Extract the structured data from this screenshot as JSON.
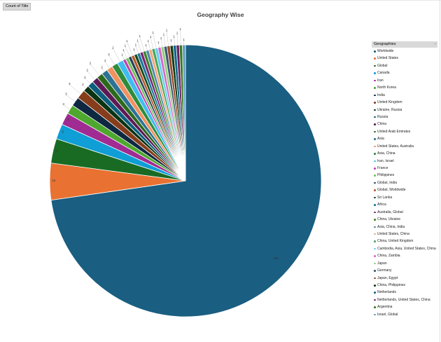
{
  "field_button": {
    "label": "Count of Title"
  },
  "chart_data": {
    "type": "pie",
    "title": "Geography Wise",
    "legend_title": "Geographies",
    "legend_position": "right",
    "slices": [
      {
        "name": "Worldwide",
        "value": 200,
        "color": "#1a5e82",
        "label": "200"
      },
      {
        "name": "United States",
        "value": 12,
        "color": "#e97132",
        "label": "12"
      },
      {
        "name": "Global",
        "value": 8,
        "color": "#196b24",
        "label": "8"
      },
      {
        "name": "Canada",
        "value": 5,
        "color": "#0f9ed5",
        "label": "5"
      },
      {
        "name": "Iran",
        "value": 4,
        "color": "#a02b93",
        "label": "4"
      },
      {
        "name": "North Korea",
        "value": 3,
        "color": "#4ea72e",
        "label": "3"
      },
      {
        "name": "India",
        "value": 3,
        "color": "#0e2841",
        "label": "3"
      },
      {
        "name": "United Kingdom",
        "value": 3,
        "color": "#873d1b",
        "label": "3"
      },
      {
        "name": "Ukraine, Russia",
        "value": 2,
        "color": "#0b3412",
        "label": "2"
      },
      {
        "name": "Russia",
        "value": 2,
        "color": "#0c5f7e",
        "label": "2"
      },
      {
        "name": "China",
        "value": 2,
        "color": "#5e1a56",
        "label": "2"
      },
      {
        "name": "United Arab Emirates",
        "value": 2,
        "color": "#2c6a1c",
        "label": "2"
      },
      {
        "name": "Asia",
        "value": 2,
        "color": "#2d7395",
        "label": "2"
      },
      {
        "name": "United States, Australia",
        "value": 2,
        "color": "#f19260",
        "label": "2"
      },
      {
        "name": "Asia, China",
        "value": 2,
        "color": "#2e8c3c",
        "label": "2"
      },
      {
        "name": "Iran, Israel",
        "value": 2,
        "color": "#3fbdf0",
        "label": "2"
      },
      {
        "name": "France",
        "value": 1,
        "color": "#c043b1",
        "label": "1"
      },
      {
        "name": "Philippines",
        "value": 1,
        "color": "#72c157",
        "label": "1"
      },
      {
        "name": "Global, India",
        "value": 1,
        "color": "#26415c",
        "label": "1"
      },
      {
        "name": "Global, Worldwide",
        "value": 1,
        "color": "#b85a2c",
        "label": "1"
      },
      {
        "name": "Sri Lanka",
        "value": 1,
        "color": "#154a1e",
        "label": "1"
      },
      {
        "name": "Africa",
        "value": 1,
        "color": "#18789e",
        "label": "1"
      },
      {
        "name": "Australia, Global",
        "value": 1,
        "color": "#7e2472",
        "label": "1"
      },
      {
        "name": "China, Ukraine",
        "value": 1,
        "color": "#3b8526",
        "label": "1"
      },
      {
        "name": "Asia, China, India",
        "value": 1,
        "color": "#4a8ab0",
        "label": "1"
      },
      {
        "name": "United States, China",
        "value": 1,
        "color": "#f4a77e",
        "label": "1"
      },
      {
        "name": "China, United Kingdom",
        "value": 1,
        "color": "#48a85a",
        "label": "1"
      },
      {
        "name": "Cambodia, Asia, United States, China",
        "value": 1,
        "color": "#6ccbf3",
        "label": "1"
      },
      {
        "name": "China, Zambia",
        "value": 1,
        "color": "#d36bc6",
        "label": "1"
      },
      {
        "name": "Japan",
        "value": 1,
        "color": "#94cf7f",
        "label": "1"
      },
      {
        "name": "Germany",
        "value": 1,
        "color": "#3d5873",
        "label": "1"
      },
      {
        "name": "Japan, Egypt",
        "value": 1,
        "color": "#9a4a24",
        "label": "1"
      },
      {
        "name": "China, Philippines",
        "value": 1,
        "color": "#0f3d17",
        "label": "1"
      },
      {
        "name": "Netherlands",
        "value": 1,
        "color": "#13668a",
        "label": "1"
      },
      {
        "name": "Netherlands, United States, China",
        "value": 1,
        "color": "#6b1f61",
        "label": "1"
      },
      {
        "name": "Argentina",
        "value": 1,
        "color": "#347a21",
        "label": "1"
      },
      {
        "name": "Israel, Global",
        "value": 1,
        "color": "#5d9bc0",
        "label": "1"
      }
    ]
  }
}
